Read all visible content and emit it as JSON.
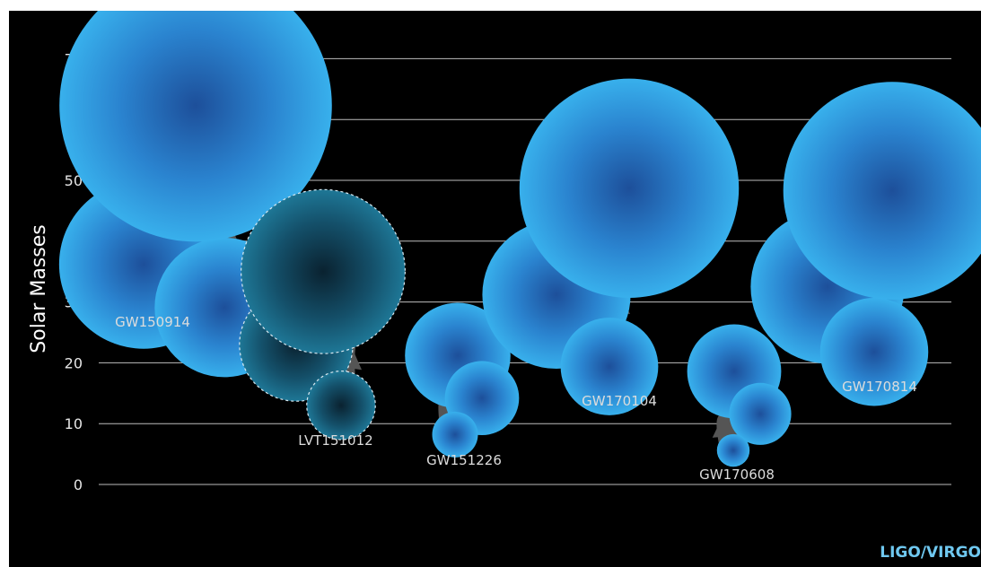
{
  "chart_data": {
    "type": "bubble",
    "ylabel": "Solar Masses",
    "ylim": [
      0,
      70
    ],
    "yticks": [
      0,
      10,
      20,
      30,
      40,
      50,
      60,
      70
    ],
    "grid": true,
    "events": [
      {
        "name": "GW150914",
        "primary": 36.2,
        "secondary": 29.1,
        "final": 62.3,
        "confirmed": true
      },
      {
        "name": "LVT151012",
        "primary": 23.0,
        "secondary": 13.0,
        "final": 35.0,
        "confirmed": false
      },
      {
        "name": "GW151226",
        "primary": 21.2,
        "secondary": 14.2,
        "final": 8.2,
        "confirmed": true
      },
      {
        "name": "GW170104",
        "primary": 31.2,
        "secondary": 19.4,
        "final": 48.7,
        "confirmed": true
      },
      {
        "name": "GW170608",
        "primary": 18.6,
        "secondary": 11.6,
        "final": 5.6,
        "confirmed": true
      },
      {
        "name": "GW170814",
        "primary": 32.5,
        "secondary": 21.8,
        "final": 48.3,
        "confirmed": true
      }
    ],
    "colors": {
      "bubble": "#35a8e6",
      "bubble_core": "#1d4f9a",
      "unconfirmed": "#1b6f8c",
      "arrow": "#555555",
      "grid": "#bdbdbd"
    }
  },
  "credit": "LIGO/VIRGO"
}
